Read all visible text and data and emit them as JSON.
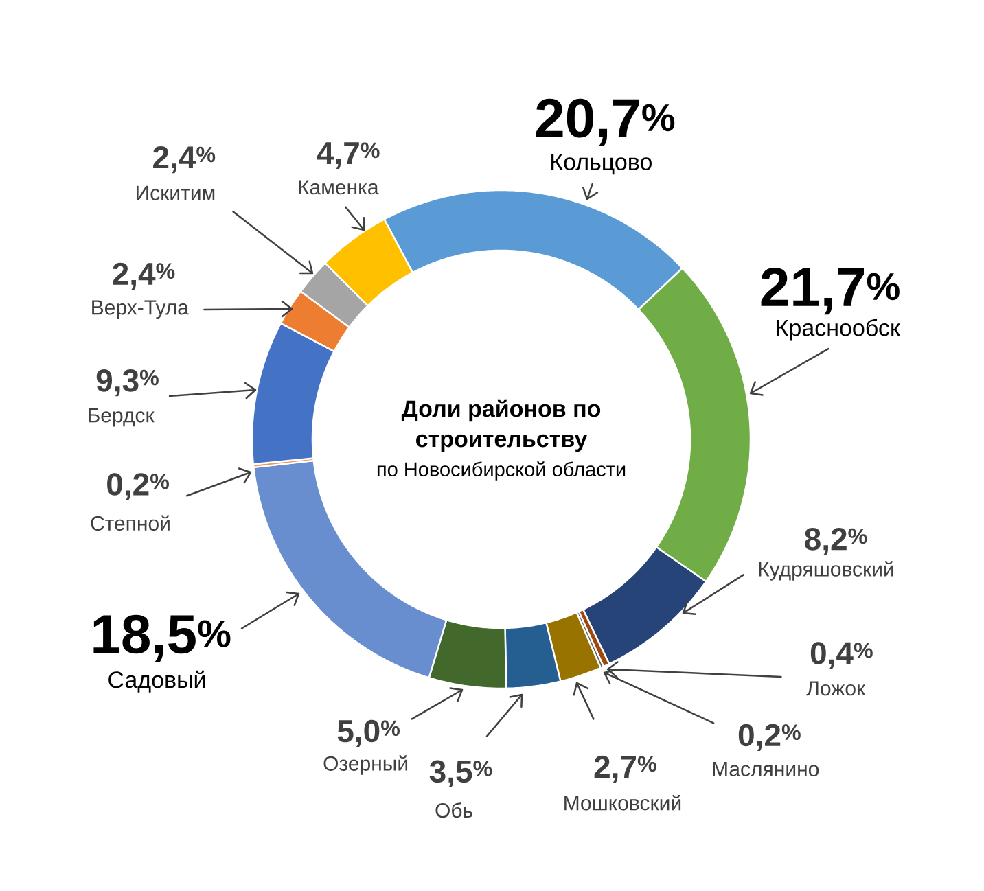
{
  "chart_data": {
    "type": "donut",
    "title": "Доли районов по строительству",
    "subtitle": "по Новосибирской области",
    "categories": [
      "Кольцово",
      "Краснообск",
      "Кудряшовский",
      "Ложок",
      "Маслянино",
      "Мошковский",
      "Обь",
      "Озерный",
      "Садовый",
      "Степной",
      "Бердск",
      "Верх-Тула",
      "Искитим",
      "Каменка"
    ],
    "values": [
      20.7,
      21.7,
      8.2,
      0.4,
      0.2,
      2.7,
      3.5,
      5.0,
      18.5,
      0.2,
      9.3,
      2.4,
      2.4,
      4.7
    ],
    "value_labels": [
      "20,7$^{%}$",
      "21,7$^{%}$",
      "8,2$^{%}$",
      "0,4$^{%}$",
      "0,2$^{%}$",
      "2,7$^{%}$",
      "3,5$^{%}$",
      "5,0$^{%}$",
      "18,5$^{%}$",
      "0,2$^{%}$",
      "9,3$^{%}$",
      "2,4$^{%}$",
      "2,4$^{%}$",
      "4,7$^{%}$"
    ],
    "colors": [
      "#5b9bd5",
      "#70ad47",
      "#264478",
      "#9e480e",
      "#636363",
      "#997300",
      "#255e91",
      "#43682b",
      "#698ed0",
      "#f1975a",
      "#4472c4",
      "#ed7d31",
      "#a5a5a5",
      "#ffc000"
    ]
  }
}
